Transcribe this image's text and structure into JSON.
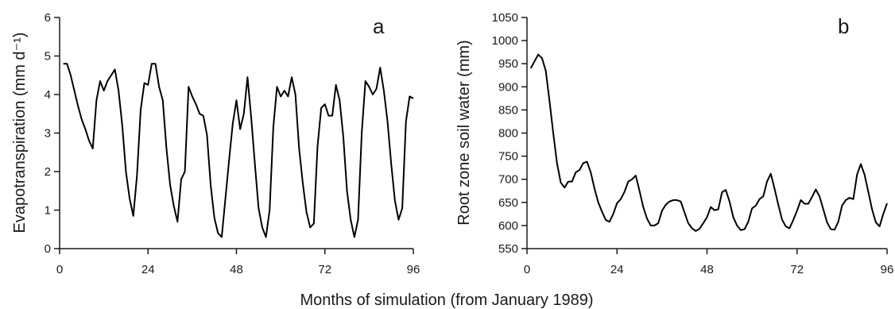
{
  "figure": {
    "shared_xlabel": "Months of simulation (from January 1989)"
  },
  "chart_data": [
    {
      "type": "line",
      "panel_label": "a",
      "ylabel": "Evapotranspiration (mm d⁻¹)",
      "xlabel": "Months of simulation (from January 1989)",
      "xlim": [
        0,
        96
      ],
      "ylim": [
        0,
        6
      ],
      "x_ticks": [
        0,
        24,
        48,
        72,
        96
      ],
      "y_ticks": [
        0,
        1,
        2,
        3,
        4,
        5,
        6
      ],
      "grid": false,
      "series": [
        {
          "color": "#000000",
          "x": [
            1,
            2,
            3,
            4,
            5,
            6,
            7,
            8,
            9,
            10,
            11,
            12,
            13,
            14,
            15,
            16,
            17,
            18,
            19,
            20,
            21,
            22,
            23,
            24,
            25,
            26,
            27,
            28,
            29,
            30,
            31,
            32,
            33,
            34,
            35,
            36,
            37,
            38,
            39,
            40,
            41,
            42,
            43,
            44,
            45,
            46,
            47,
            48,
            49,
            50,
            51,
            52,
            53,
            54,
            55,
            56,
            57,
            58,
            59,
            60,
            61,
            62,
            63,
            64,
            65,
            66,
            67,
            68,
            69,
            70,
            71,
            72,
            73,
            74,
            75,
            76,
            77,
            78,
            79,
            80,
            81,
            82,
            83,
            84,
            85,
            86,
            87,
            88,
            89,
            90,
            91,
            92,
            93,
            94,
            95,
            96
          ],
          "values": [
            4.8,
            4.8,
            4.5,
            4.1,
            3.7,
            3.35,
            3.1,
            2.8,
            2.6,
            3.85,
            4.35,
            4.1,
            4.35,
            4.5,
            4.65,
            4.1,
            3.2,
            2.0,
            1.3,
            0.85,
            1.9,
            3.6,
            4.3,
            4.25,
            4.8,
            4.8,
            4.2,
            3.85,
            2.6,
            1.65,
            1.1,
            0.7,
            1.8,
            2.0,
            4.2,
            3.95,
            3.75,
            3.5,
            3.45,
            2.95,
            1.65,
            0.8,
            0.4,
            0.3,
            1.3,
            2.3,
            3.25,
            3.85,
            3.1,
            3.5,
            4.45,
            3.4,
            2.2,
            1.05,
            0.55,
            0.3,
            1.0,
            3.15,
            4.2,
            3.95,
            4.1,
            3.95,
            4.45,
            4.0,
            2.6,
            1.7,
            0.95,
            0.55,
            0.65,
            2.65,
            3.65,
            3.75,
            3.45,
            3.45,
            4.25,
            3.85,
            2.9,
            1.5,
            0.75,
            0.3,
            0.75,
            3.0,
            4.35,
            4.2,
            4.0,
            4.15,
            4.7,
            4.1,
            3.3,
            2.2,
            1.25,
            0.75,
            1.05,
            3.3,
            3.95,
            3.9
          ]
        }
      ]
    },
    {
      "type": "line",
      "panel_label": "b",
      "ylabel": "Root zone soil water (mm)",
      "xlabel": "Months of simulation (from January 1989)",
      "xlim": [
        0,
        96
      ],
      "ylim": [
        550,
        1050
      ],
      "x_ticks": [
        0,
        24,
        48,
        72,
        96
      ],
      "y_ticks": [
        550,
        600,
        650,
        700,
        750,
        800,
        850,
        900,
        950,
        1000,
        1050
      ],
      "grid": false,
      "series": [
        {
          "color": "#000000",
          "x": [
            1,
            2,
            3,
            4,
            5,
            6,
            7,
            8,
            9,
            10,
            11,
            12,
            13,
            14,
            15,
            16,
            17,
            18,
            19,
            20,
            21,
            22,
            23,
            24,
            25,
            26,
            27,
            28,
            29,
            30,
            31,
            32,
            33,
            34,
            35,
            36,
            37,
            38,
            39,
            40,
            41,
            42,
            43,
            44,
            45,
            46,
            47,
            48,
            49,
            50,
            51,
            52,
            53,
            54,
            55,
            56,
            57,
            58,
            59,
            60,
            61,
            62,
            63,
            64,
            65,
            66,
            67,
            68,
            69,
            70,
            71,
            72,
            73,
            74,
            75,
            76,
            77,
            78,
            79,
            80,
            81,
            82,
            83,
            84,
            85,
            86,
            87,
            88,
            89,
            90,
            91,
            92,
            93,
            94,
            95,
            96
          ],
          "values": [
            940,
            955,
            970,
            962,
            935,
            870,
            800,
            735,
            693,
            682,
            695,
            695,
            715,
            720,
            735,
            738,
            715,
            680,
            650,
            630,
            612,
            608,
            625,
            648,
            657,
            673,
            695,
            700,
            708,
            675,
            640,
            615,
            600,
            600,
            605,
            632,
            645,
            652,
            655,
            655,
            652,
            628,
            605,
            594,
            588,
            593,
            605,
            618,
            640,
            633,
            635,
            672,
            677,
            652,
            618,
            600,
            590,
            592,
            608,
            637,
            643,
            657,
            663,
            695,
            712,
            680,
            645,
            613,
            598,
            594,
            612,
            632,
            655,
            647,
            647,
            662,
            678,
            663,
            635,
            607,
            592,
            591,
            608,
            643,
            655,
            660,
            657,
            710,
            733,
            710,
            673,
            635,
            607,
            598,
            625,
            648
          ]
        }
      ]
    }
  ]
}
